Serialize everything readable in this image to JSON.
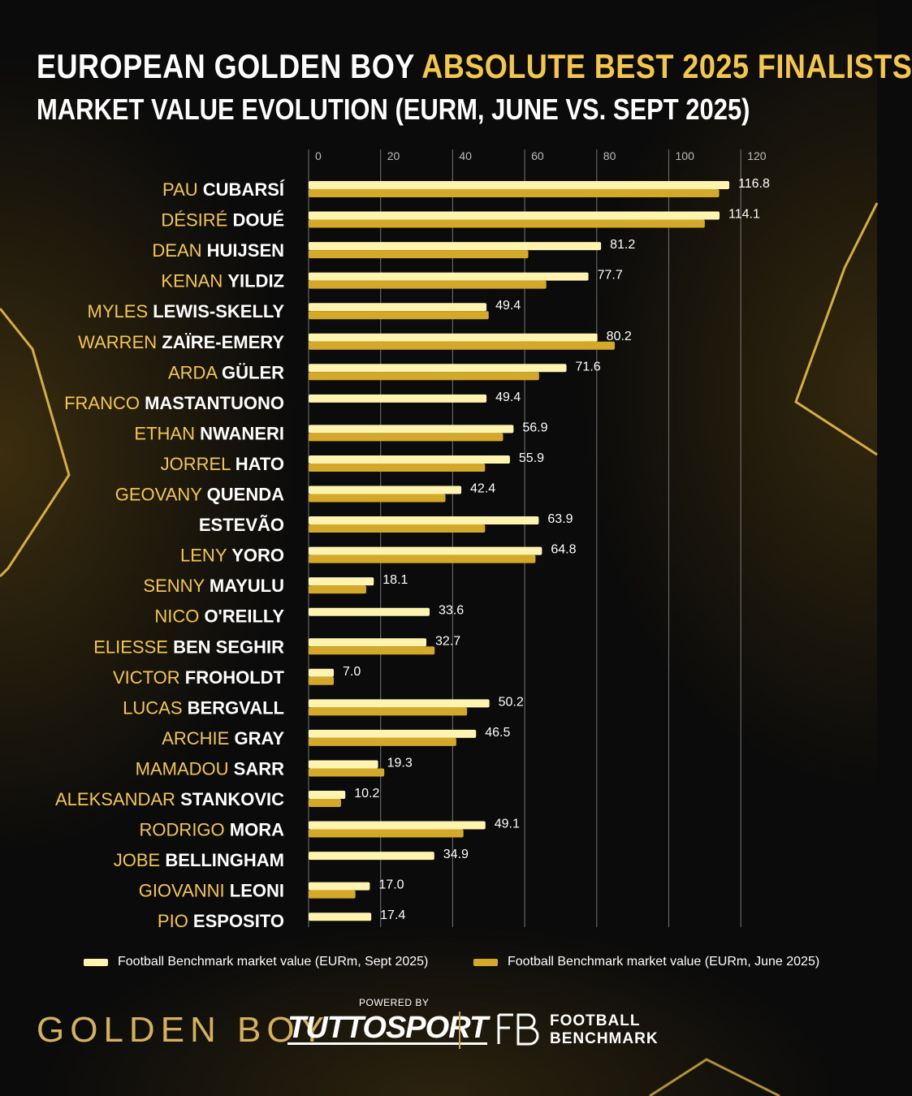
{
  "header": {
    "title_part1": "EUROPEAN GOLDEN BOY",
    "title_part2": "ABSOLUTE BEST 2025 FINALISTS",
    "subtitle": "MARKET VALUE EVOLUTION (EURM, JUNE VS. SEPT 2025)"
  },
  "chart_data": {
    "type": "bar",
    "orientation": "horizontal",
    "xlim": [
      0,
      120
    ],
    "x_ticks": [
      "0",
      "20",
      "40",
      "60",
      "80",
      "100",
      "120"
    ],
    "grid": true,
    "legend_position": "bottom",
    "categories": [
      {
        "first": "PAU",
        "last": "CUBARSÍ"
      },
      {
        "first": "DÉSIRÉ",
        "last": "DOUÉ"
      },
      {
        "first": "DEAN",
        "last": "HUIJSEN"
      },
      {
        "first": "KENAN",
        "last": "YILDIZ"
      },
      {
        "first": "MYLES",
        "last": "LEWIS-SKELLY"
      },
      {
        "first": "WARREN",
        "last": "ZAÏRE-EMERY"
      },
      {
        "first": "ARDA",
        "last": "GÜLER"
      },
      {
        "first": "FRANCO",
        "last": "MASTANTUONO"
      },
      {
        "first": "ETHAN",
        "last": "NWANERI"
      },
      {
        "first": "JORREL",
        "last": "HATO"
      },
      {
        "first": "GEOVANY",
        "last": "QUENDA"
      },
      {
        "first": "",
        "last": "ESTEVÃO"
      },
      {
        "first": "LENY",
        "last": "YORO"
      },
      {
        "first": "SENNY",
        "last": "MAYULU"
      },
      {
        "first": "NICO",
        "last": "O'REILLY"
      },
      {
        "first": "ELIESSE",
        "last": "BEN SEGHIR"
      },
      {
        "first": "VICTOR",
        "last": "FROHOLDT"
      },
      {
        "first": "LUCAS",
        "last": "BERGVALL"
      },
      {
        "first": "ARCHIE",
        "last": "GRAY"
      },
      {
        "first": "MAMADOU",
        "last": "SARR"
      },
      {
        "first": "ALEKSANDAR",
        "last": "STANKOVIC"
      },
      {
        "first": "RODRIGO",
        "last": "MORA"
      },
      {
        "first": "JOBE",
        "last": "BELLINGHAM"
      },
      {
        "first": "GIOVANNI",
        "last": "LEONI"
      },
      {
        "first": "PIO",
        "last": "ESPOSITO"
      }
    ],
    "series": [
      {
        "name": "Football Benchmark market value (EURm, Sept 2025)",
        "color": "#fff3b0",
        "values": [
          116.8,
          114.1,
          81.2,
          77.7,
          49.4,
          80.2,
          71.6,
          49.4,
          56.9,
          55.9,
          42.4,
          63.9,
          64.8,
          18.1,
          33.6,
          32.7,
          7.0,
          50.2,
          46.5,
          19.3,
          10.2,
          49.1,
          34.9,
          17.0,
          17.4
        ],
        "labels": [
          "116.8",
          "114.1",
          "81.2",
          "77.7",
          "49.4",
          "80.2",
          "71.6",
          "49.4",
          "56.9",
          "55.9",
          "42.4",
          "63.9",
          "64.8",
          "18.1",
          "33.6",
          "32.7",
          "7.0",
          "50.2",
          "46.5",
          "19.3",
          "10.2",
          "49.1",
          "34.9",
          "17.0",
          "17.4"
        ]
      },
      {
        "name": "Football Benchmark market value (EURm, June 2025)",
        "color": "#d4a829",
        "values": [
          114,
          110,
          61,
          66,
          50,
          85,
          64,
          null,
          54,
          49,
          38,
          49,
          63,
          16,
          null,
          35,
          7,
          44,
          41,
          21,
          9,
          43,
          null,
          13,
          null
        ]
      }
    ]
  },
  "footer": {
    "brand": "GOLDEN BOY",
    "powered_by": "POWERED BY",
    "partner": "TUTTOSPORT",
    "benchmark_mark": "FB",
    "benchmark_line1": "FOOTBALL",
    "benchmark_line2": "BENCHMARK"
  }
}
